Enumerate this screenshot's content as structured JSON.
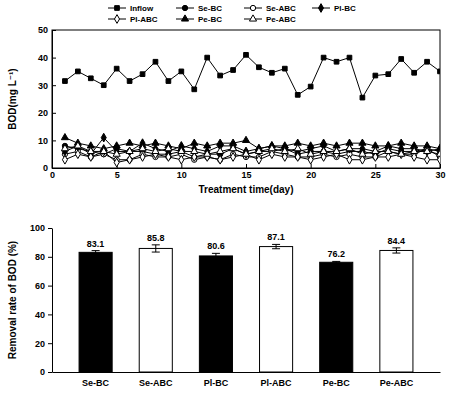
{
  "chart_data": [
    {
      "type": "line",
      "xlabel": "Treatment time(day)",
      "ylabel": "BOD(mg L⁻¹)",
      "x": [
        1,
        2,
        3,
        4,
        5,
        6,
        7,
        8,
        9,
        10,
        11,
        12,
        13,
        14,
        15,
        16,
        17,
        18,
        19,
        20,
        21,
        22,
        23,
        24,
        25,
        26,
        27,
        28,
        29,
        30
      ],
      "series": [
        {
          "name": "Inflow",
          "color": "#000000",
          "marker": "square",
          "line_style": "solid",
          "values": [
            31.5,
            35,
            32.5,
            30,
            36,
            31.5,
            34,
            38.5,
            31.5,
            35,
            28.5,
            40,
            33.5,
            35.5,
            41,
            36.5,
            34.5,
            36,
            26.5,
            29.5,
            40,
            38.5,
            40,
            25.5,
            33.5,
            34,
            39.5,
            34.5,
            38.5,
            35
          ]
        },
        {
          "name": "Se-BC",
          "color": "#000000",
          "marker": "circle",
          "line_style": "solid",
          "values": [
            8,
            7,
            6,
            5,
            7,
            6,
            6,
            5,
            5,
            6,
            4,
            5,
            5,
            7,
            5,
            6,
            6,
            7,
            5,
            6,
            6,
            5,
            6,
            6,
            5,
            7,
            6,
            6,
            7,
            6
          ]
        },
        {
          "name": "Se-ABC",
          "color": "#000000",
          "marker": "circle-open",
          "line_style": "solid",
          "values": [
            5,
            6,
            4,
            5,
            3,
            3,
            5,
            4,
            4,
            5,
            3,
            4,
            3,
            5,
            4,
            4,
            6,
            5,
            4,
            4,
            5,
            4,
            5,
            4,
            4,
            6,
            5,
            5,
            7,
            4
          ]
        },
        {
          "name": "Pl-BC",
          "color": "#000000",
          "marker": "diamond",
          "line_style": "solid",
          "values": [
            6,
            8,
            5,
            11,
            6,
            6,
            9,
            7,
            6,
            8,
            7,
            6,
            8,
            8,
            6,
            7,
            8,
            7,
            6,
            7,
            8,
            6,
            7,
            7,
            6,
            8,
            7,
            7,
            6,
            7
          ]
        },
        {
          "name": "Pl-ABC",
          "color": "#000000",
          "marker": "diamond-open",
          "line_style": "solid",
          "values": [
            3,
            5,
            4,
            6,
            2,
            3,
            4,
            5,
            4,
            3,
            4,
            4,
            3,
            4,
            5,
            3,
            5,
            4,
            4,
            3,
            4,
            5,
            3,
            3,
            4,
            4,
            5,
            4,
            3,
            3
          ]
        },
        {
          "name": "Pe-BC",
          "color": "#000000",
          "marker": "triangle",
          "line_style": "solid",
          "values": [
            11,
            9,
            8,
            7,
            8,
            9,
            8,
            9,
            8,
            7,
            9,
            8,
            9,
            9,
            10,
            7,
            8,
            8,
            9,
            8,
            9,
            8,
            9,
            9,
            8,
            8,
            9,
            8,
            8,
            7
          ]
        },
        {
          "name": "Pe-ABC",
          "color": "#000000",
          "marker": "triangle-open",
          "line_style": "solid",
          "values": [
            7,
            8,
            6,
            6,
            5,
            6,
            7,
            6,
            7,
            6,
            6,
            5,
            6,
            7,
            5,
            6,
            7,
            6,
            7,
            5,
            6,
            6,
            7,
            5,
            6,
            6,
            5,
            6,
            6,
            5
          ]
        }
      ],
      "xlim": [
        0,
        30
      ],
      "ylim": [
        0,
        50
      ],
      "xticks": [
        0,
        5,
        10,
        15,
        20,
        25,
        30
      ],
      "yticks": [
        0,
        10,
        20,
        30,
        40,
        50
      ],
      "legend": "top"
    },
    {
      "type": "bar",
      "ylabel": "Removal rate of BOD (%)",
      "categories": [
        "Se-BC",
        "Se-ABC",
        "Pl-BC",
        "Pl-ABC",
        "Pe-BC",
        "Pe-ABC"
      ],
      "values": [
        83.1,
        85.8,
        80.6,
        87.1,
        76.2,
        84.4
      ],
      "errors": [
        1.2,
        2.5,
        1.8,
        1.5,
        0.6,
        1.8
      ],
      "colors": [
        "#000000",
        "#ffffff",
        "#000000",
        "#ffffff",
        "#000000",
        "#ffffff"
      ],
      "ylim": [
        0,
        100
      ],
      "yticks": [
        0,
        20,
        40,
        60,
        80,
        100
      ],
      "data_labels": true
    }
  ]
}
